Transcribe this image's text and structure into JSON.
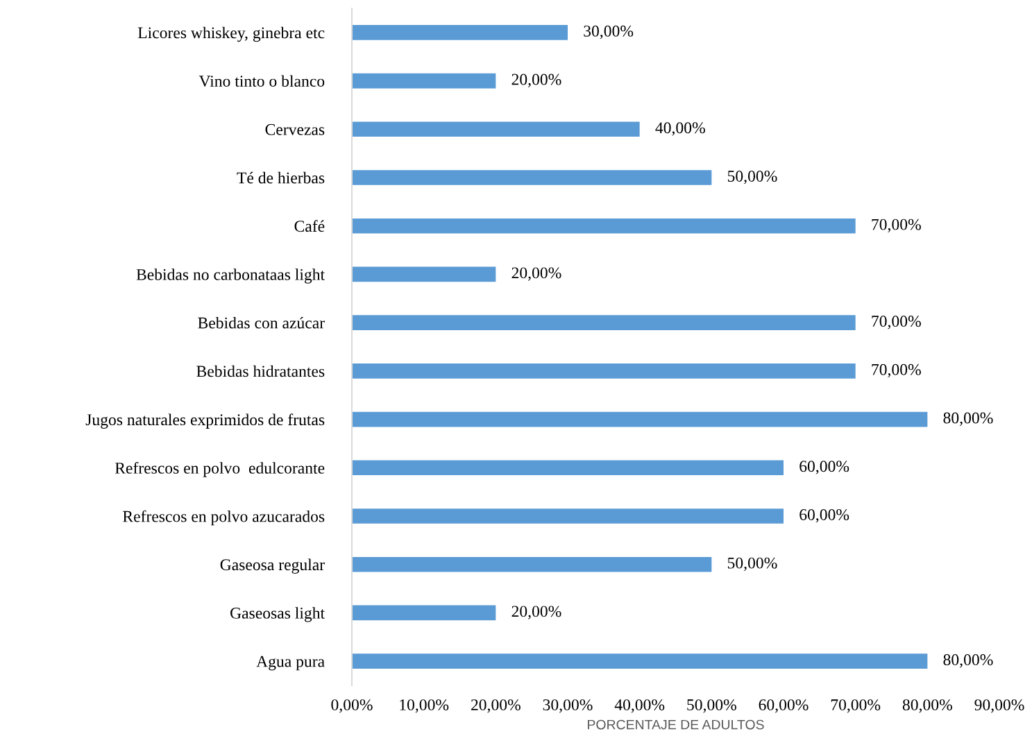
{
  "chart_data": {
    "type": "bar",
    "orientation": "horizontal",
    "xlabel": "PORCENTAJE DE ADULTOS",
    "categories": [
      "Licores whiskey, ginebra etc",
      "Vino tinto o blanco",
      "Cervezas",
      "Té de hierbas",
      "Café",
      "Bebidas no carbonataas light",
      "Bebidas con azúcar",
      "Bebidas hidratantes",
      "Jugos naturales exprimidos de frutas",
      "Refrescos en polvo  edulcorante",
      "Refrescos en polvo azucarados",
      "Gaseosa regular",
      "Gaseosas light",
      "Agua pura"
    ],
    "values": [
      30,
      20,
      40,
      50,
      70,
      20,
      70,
      70,
      80,
      60,
      60,
      50,
      20,
      80
    ],
    "value_labels": [
      "30,00%",
      "20,00%",
      "40,00%",
      "50,00%",
      "70,00%",
      "20,00%",
      "70,00%",
      "70,00%",
      "80,00%",
      "60,00%",
      "60,00%",
      "50,00%",
      "20,00%",
      "80,00%"
    ],
    "color": "#5b9bd5",
    "xlim": [
      0,
      90
    ],
    "xticks": [
      {
        "value": 0,
        "label": "0,00%"
      },
      {
        "value": 10,
        "label": "10,00%"
      },
      {
        "value": 20,
        "label": "20,00%"
      },
      {
        "value": 30,
        "label": "30,00%"
      },
      {
        "value": 40,
        "label": "40,00%"
      },
      {
        "value": 50,
        "label": "50,00%"
      },
      {
        "value": 60,
        "label": "60,00%"
      },
      {
        "value": 70,
        "label": "70,00%"
      },
      {
        "value": 80,
        "label": "80,00%"
      },
      {
        "value": 90,
        "label": "90,00%"
      }
    ],
    "grid": false,
    "legend": false
  }
}
